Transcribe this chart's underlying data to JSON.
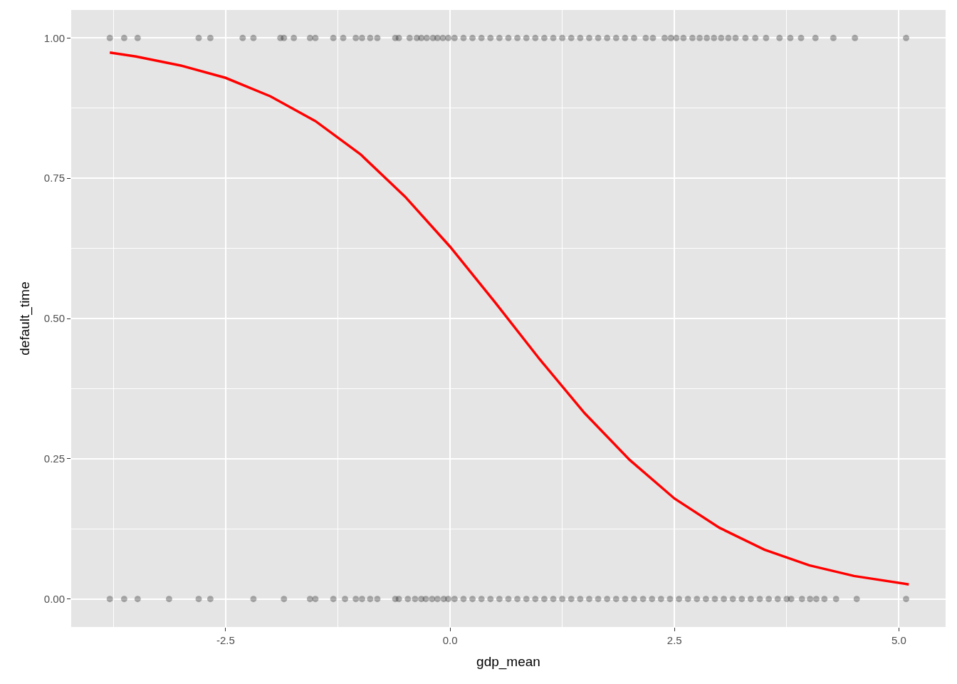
{
  "chart_data": {
    "type": "scatter",
    "xlabel": "gdp_mean",
    "ylabel": "default_time",
    "xlim": [
      -4.22,
      5.52
    ],
    "ylim": [
      -0.05,
      1.05
    ],
    "xticks": [
      {
        "value": -2.5,
        "label": "-2.5"
      },
      {
        "value": 0,
        "label": "0.0"
      },
      {
        "value": 2.5,
        "label": "2.5"
      },
      {
        "value": 5,
        "label": "5.0"
      }
    ],
    "yticks": [
      {
        "value": 0,
        "label": "0.00"
      },
      {
        "value": 0.25,
        "label": "0.25"
      },
      {
        "value": 0.5,
        "label": "0.50"
      },
      {
        "value": 0.75,
        "label": "0.75"
      },
      {
        "value": 1,
        "label": "1.00"
      }
    ],
    "grid": true,
    "marker": "circle",
    "series": [
      {
        "color": "#000000",
        "x": [
          -3.79,
          -3.63,
          -3.48,
          -2.8,
          -2.67,
          -2.31,
          -2.19,
          -1.89,
          -1.85,
          -1.74,
          -1.56,
          -1.5,
          -1.3,
          -1.19,
          -1.05,
          -0.98,
          -0.89,
          -0.81,
          -0.61,
          -0.57,
          -0.45,
          -0.37,
          -0.32,
          -0.26,
          -0.19,
          -0.14,
          -0.08,
          -0.02,
          0.05,
          0.15,
          0.25,
          0.35,
          0.45,
          0.55,
          0.65,
          0.75,
          0.85,
          0.95,
          1.05,
          1.15,
          1.25,
          1.35,
          1.45,
          1.55,
          1.65,
          1.75,
          1.85,
          1.95,
          2.05,
          2.18,
          2.26,
          2.39,
          2.46,
          2.52,
          2.6,
          2.7,
          2.78,
          2.86,
          2.94,
          3.02,
          3.1,
          3.18,
          3.29,
          3.4,
          3.52,
          3.67,
          3.79,
          3.91,
          4.07,
          4.27,
          4.51,
          5.08
        ],
        "values": [
          1,
          1,
          1,
          1,
          1,
          1,
          1,
          1,
          1,
          1,
          1,
          1,
          1,
          1,
          1,
          1,
          1,
          1,
          1,
          1,
          1,
          1,
          1,
          1,
          1,
          1,
          1,
          1,
          1,
          1,
          1,
          1,
          1,
          1,
          1,
          1,
          1,
          1,
          1,
          1,
          1,
          1,
          1,
          1,
          1,
          1,
          1,
          1,
          1,
          1,
          1,
          1,
          1,
          1,
          1,
          1,
          1,
          1,
          1,
          1,
          1,
          1,
          1,
          1,
          1,
          1,
          1,
          1,
          1,
          1,
          1,
          1
        ]
      },
      {
        "color": "#000000",
        "x": [
          -3.79,
          -3.63,
          -3.48,
          -3.13,
          -2.8,
          -2.67,
          -2.19,
          -1.85,
          -1.56,
          -1.5,
          -1.3,
          -1.17,
          -1.05,
          -0.98,
          -0.89,
          -0.81,
          -0.61,
          -0.57,
          -0.47,
          -0.39,
          -0.32,
          -0.27,
          -0.2,
          -0.14,
          -0.07,
          -0.02,
          0.05,
          0.15,
          0.25,
          0.35,
          0.45,
          0.55,
          0.65,
          0.75,
          0.85,
          0.95,
          1.05,
          1.15,
          1.25,
          1.35,
          1.45,
          1.55,
          1.65,
          1.75,
          1.85,
          1.95,
          2.05,
          2.15,
          2.25,
          2.35,
          2.45,
          2.55,
          2.65,
          2.75,
          2.85,
          2.95,
          3.05,
          3.15,
          3.25,
          3.35,
          3.45,
          3.55,
          3.65,
          3.75,
          3.8,
          3.92,
          4.01,
          4.08,
          4.17,
          4.3,
          4.53,
          5.08
        ],
        "values": [
          0,
          0,
          0,
          0,
          0,
          0,
          0,
          0,
          0,
          0,
          0,
          0,
          0,
          0,
          0,
          0,
          0,
          0,
          0,
          0,
          0,
          0,
          0,
          0,
          0,
          0,
          0,
          0,
          0,
          0,
          0,
          0,
          0,
          0,
          0,
          0,
          0,
          0,
          0,
          0,
          0,
          0,
          0,
          0,
          0,
          0,
          0,
          0,
          0,
          0,
          0,
          0,
          0,
          0,
          0,
          0,
          0,
          0,
          0,
          0,
          0,
          0,
          0,
          0,
          0,
          0,
          0,
          0,
          0,
          0,
          0,
          0
        ]
      },
      {
        "type": "line",
        "marker": "none",
        "color": "#ff0000",
        "x": [
          -3.79,
          -3.5,
          -3.0,
          -2.5,
          -2.0,
          -1.5,
          -1.0,
          -0.5,
          0,
          0.5,
          1.0,
          1.5,
          2.0,
          2.5,
          3.0,
          3.5,
          4.0,
          4.5,
          5.11
        ],
        "values": [
          0.974,
          0.967,
          0.951,
          0.929,
          0.896,
          0.852,
          0.793,
          0.717,
          0.628,
          0.529,
          0.427,
          0.331,
          0.248,
          0.179,
          0.127,
          0.088,
          0.06,
          0.041,
          0.026
        ]
      }
    ]
  }
}
